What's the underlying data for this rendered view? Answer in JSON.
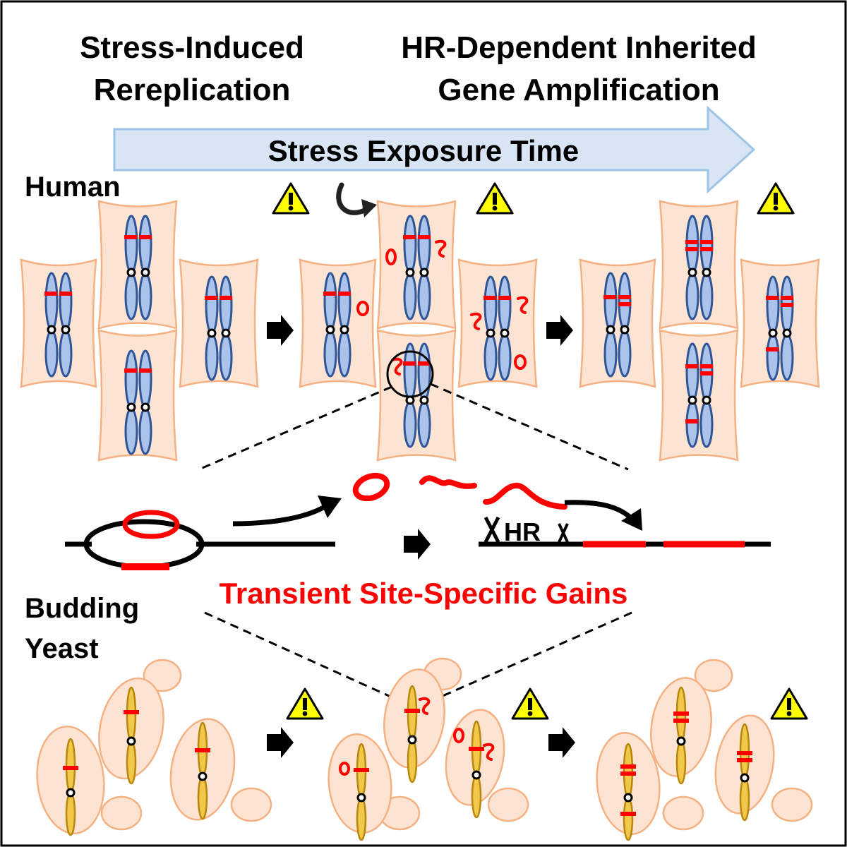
{
  "header": {
    "left_title_line1": "Stress-Induced",
    "left_title_line2": "Rereplication",
    "right_title_line1": "HR-Dependent Inherited",
    "right_title_line2": "Gene Amplification"
  },
  "timeline": {
    "label": "Stress Exposure Time"
  },
  "organisms": {
    "human": "Human",
    "yeast_line1": "Budding",
    "yeast_line2": "Yeast"
  },
  "mechanism": {
    "hr_label": "HR",
    "caption": "Transient Site-Specific Gains"
  },
  "icons": {
    "warning": "warning-triangle-icon",
    "step_arrow": "right-arrow-icon",
    "cycle_arrow": "curved-arrow-icon",
    "zoom": "magnifier-circle-icon"
  },
  "colors": {
    "amplicon": "#ff0000",
    "chromatid_fill": "#a9c3ea",
    "chromatid_stroke": "#2f5597",
    "yeast_chrom_fill": "#f2c84b",
    "yeast_chrom_stroke": "#b8860b",
    "cell_fill": "#fde4d2",
    "cell_stroke": "#f4b183",
    "timeline_fill": "#d9e4f5",
    "timeline_stroke": "#9dc3e6",
    "warning_fill": "#ffff00"
  }
}
